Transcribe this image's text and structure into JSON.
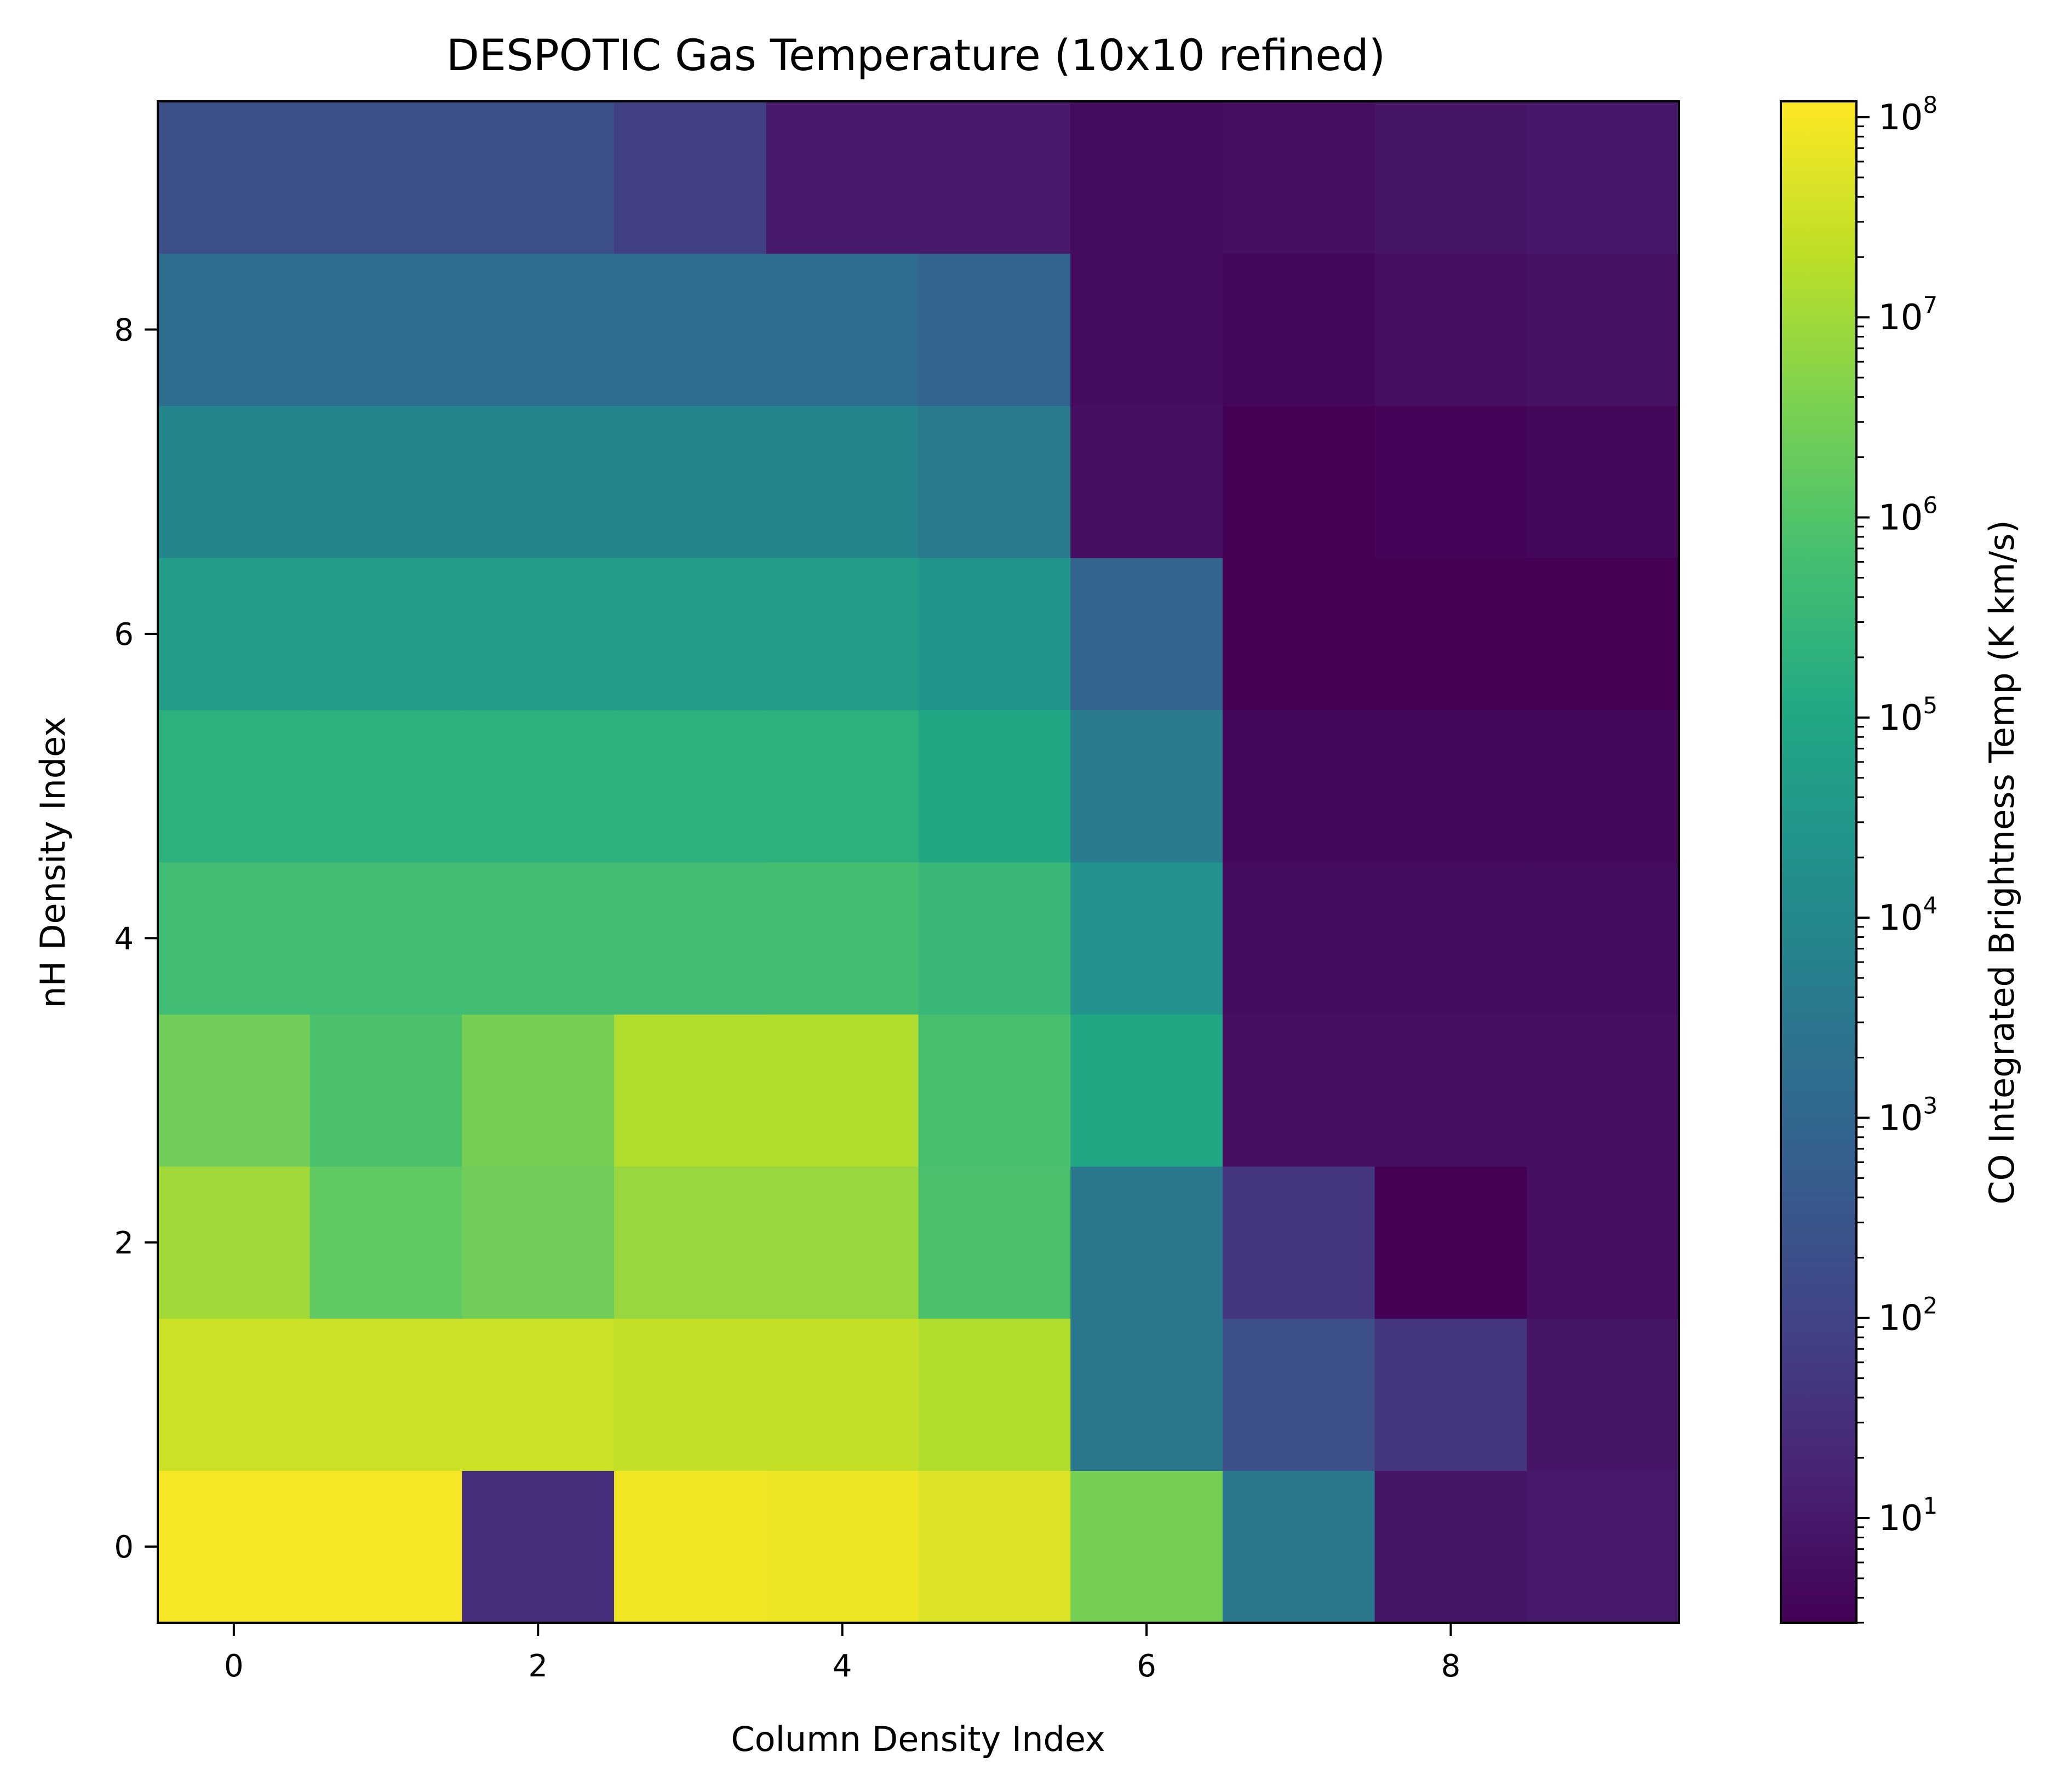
{
  "chart_data": {
    "type": "heatmap",
    "title": "DESPOTIC Gas Temperature (10x10 refined)",
    "xlabel": "Column Density Index",
    "ylabel": "nH Density Index",
    "colorbar_label": "CO Integrated Brightness Temp (K km/s)",
    "colormap": "viridis",
    "color_scale": "log",
    "color_range": [
      3,
      120000000
    ],
    "x_ticks": [
      0,
      2,
      4,
      6,
      8
    ],
    "y_ticks": [
      0,
      2,
      4,
      6,
      8
    ],
    "xlim": [
      -0.5,
      9.5
    ],
    "ylim": [
      -0.5,
      9.5
    ],
    "colorbar_ticks": [
      {
        "value": 10,
        "base": "10",
        "exp": "1"
      },
      {
        "value": 100,
        "base": "10",
        "exp": "2"
      },
      {
        "value": 1000,
        "base": "10",
        "exp": "3"
      },
      {
        "value": 10000,
        "base": "10",
        "exp": "4"
      },
      {
        "value": 100000,
        "base": "10",
        "exp": "5"
      },
      {
        "value": 1000000,
        "base": "10",
        "exp": "6"
      },
      {
        "value": 10000000,
        "base": "10",
        "exp": "7"
      },
      {
        "value": 100000000,
        "base": "10",
        "exp": "8"
      }
    ],
    "rows_description": "values[i] is the row for nH Density Index i; entries ordered by Column Density Index 0..9",
    "values": [
      [
        100000000,
        100000000,
        30,
        90000000,
        80000000,
        50000000,
        3000000,
        3000,
        8,
        10
      ],
      [
        30000000,
        30000000,
        30000000,
        25000000,
        25000000,
        15000000,
        3000,
        200,
        50,
        8
      ],
      [
        10000000,
        1500000,
        2500000,
        8000000,
        8000000,
        800000,
        3000,
        50,
        3,
        6
      ],
      [
        2500000,
        800000,
        3000000,
        15000000,
        15000000,
        700000,
        100000,
        6,
        6,
        6
      ],
      [
        500000,
        500000,
        500000,
        500000,
        600000,
        350000,
        20000,
        5,
        5,
        5
      ],
      [
        200000,
        200000,
        200000,
        200000,
        200000,
        100000,
        4000,
        4,
        4,
        4
      ],
      [
        50000,
        50000,
        50000,
        50000,
        50000,
        25000,
        800,
        3,
        3,
        3
      ],
      [
        8000,
        8000,
        8000,
        8000,
        8000,
        4000,
        6,
        3,
        3.5,
        4
      ],
      [
        1500,
        1500,
        1500,
        1500,
        1500,
        800,
        5,
        4,
        6,
        7
      ],
      [
        200,
        200,
        200,
        80,
        10,
        10,
        5,
        6,
        8,
        9
      ]
    ]
  }
}
